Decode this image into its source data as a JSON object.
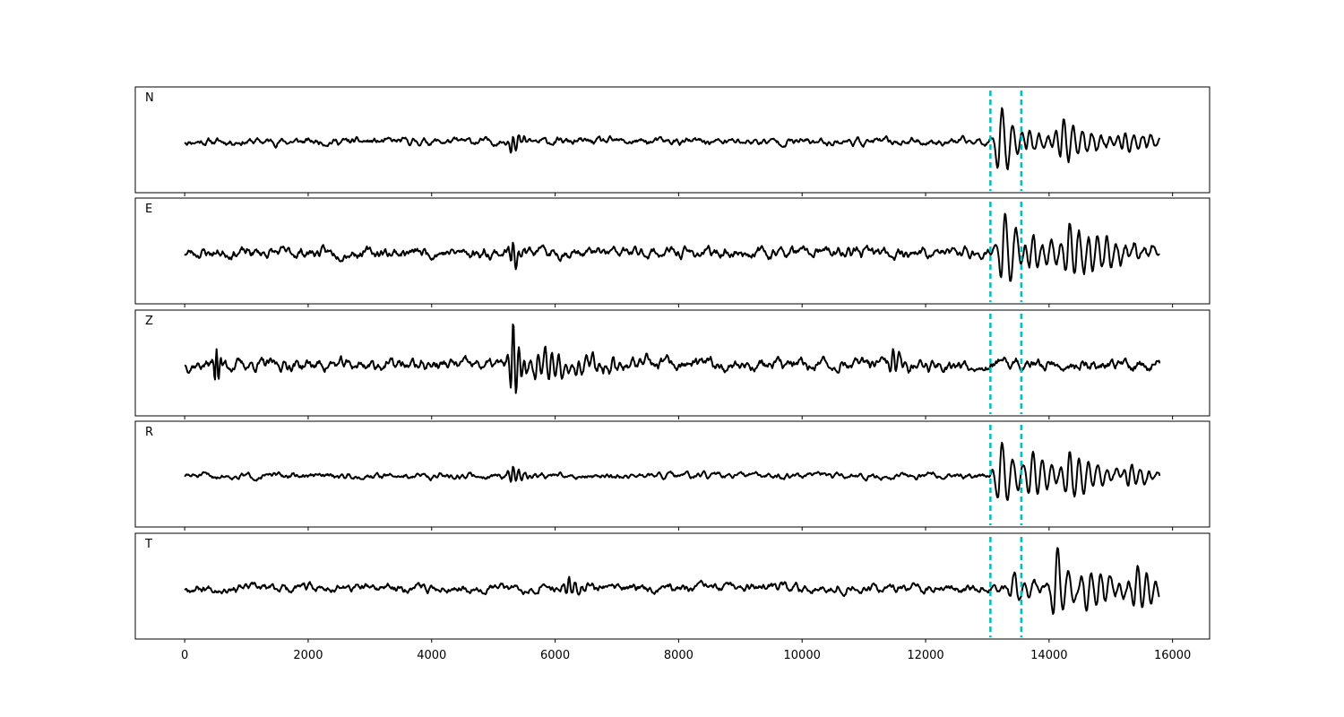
{
  "chart_data": {
    "type": "line",
    "xlim": [
      -800,
      16600
    ],
    "xticks": [
      0,
      2000,
      4000,
      6000,
      8000,
      10000,
      12000,
      14000,
      16000
    ],
    "xtick_labels": [
      "0",
      "2000",
      "4000",
      "6000",
      "8000",
      "10000",
      "12000",
      "14000",
      "16000"
    ],
    "ylim": [
      -1,
      1
    ],
    "n_samples": 15800,
    "grid": false,
    "series_color": "#000000",
    "marker_color": "#00bfbf",
    "panels": [
      {
        "name": "N",
        "markers": [
          13050,
          13550
        ],
        "seed": 11,
        "noise": 0.06,
        "events": [
          {
            "t": 5300,
            "amp": 0.26,
            "dur": 120,
            "period": 90
          },
          {
            "t": 13200,
            "amp": 0.85,
            "dur": 260,
            "period": 170
          },
          {
            "t": 13650,
            "amp": 0.35,
            "dur": 400,
            "period": 150
          },
          {
            "t": 14200,
            "amp": 0.55,
            "dur": 450,
            "period": 150
          },
          {
            "t": 15200,
            "amp": 0.28,
            "dur": 500,
            "period": 140
          }
        ]
      },
      {
        "name": "E",
        "markers": [
          13050,
          13550
        ],
        "seed": 23,
        "noise": 0.09,
        "events": [
          {
            "t": 5300,
            "amp": 0.35,
            "dur": 120,
            "period": 90
          },
          {
            "t": 13250,
            "amp": 0.9,
            "dur": 260,
            "period": 170
          },
          {
            "t": 13700,
            "amp": 0.45,
            "dur": 500,
            "period": 150
          },
          {
            "t": 14300,
            "amp": 0.5,
            "dur": 800,
            "period": 150
          }
        ]
      },
      {
        "name": "Z",
        "markers": [
          13050,
          13550
        ],
        "seed": 37,
        "noise": 0.1,
        "events": [
          {
            "t": 500,
            "amp": 0.55,
            "dur": 60,
            "period": 70
          },
          {
            "t": 5300,
            "amp": 1.0,
            "dur": 120,
            "period": 90
          },
          {
            "t": 5700,
            "amp": 0.3,
            "dur": 900,
            "period": 110
          },
          {
            "t": 11450,
            "amp": 0.35,
            "dur": 120,
            "period": 100
          }
        ]
      },
      {
        "name": "R",
        "markers": [
          13050,
          13550
        ],
        "seed": 51,
        "noise": 0.05,
        "events": [
          {
            "t": 5300,
            "amp": 0.25,
            "dur": 120,
            "period": 90
          },
          {
            "t": 13200,
            "amp": 0.85,
            "dur": 260,
            "period": 170
          },
          {
            "t": 13700,
            "amp": 0.4,
            "dur": 500,
            "period": 150
          },
          {
            "t": 14300,
            "amp": 0.45,
            "dur": 500,
            "period": 150
          },
          {
            "t": 15300,
            "amp": 0.3,
            "dur": 400,
            "period": 140
          }
        ]
      },
      {
        "name": "T",
        "markers": [
          13050,
          13550
        ],
        "seed": 67,
        "noise": 0.07,
        "events": [
          {
            "t": 6200,
            "amp": 0.25,
            "dur": 200,
            "period": 100
          },
          {
            "t": 13400,
            "amp": 0.35,
            "dur": 300,
            "period": 160
          },
          {
            "t": 14100,
            "amp": 0.95,
            "dur": 250,
            "period": 170
          },
          {
            "t": 14500,
            "amp": 0.4,
            "dur": 700,
            "period": 150
          },
          {
            "t": 15400,
            "amp": 0.38,
            "dur": 300,
            "period": 140
          }
        ]
      }
    ]
  }
}
